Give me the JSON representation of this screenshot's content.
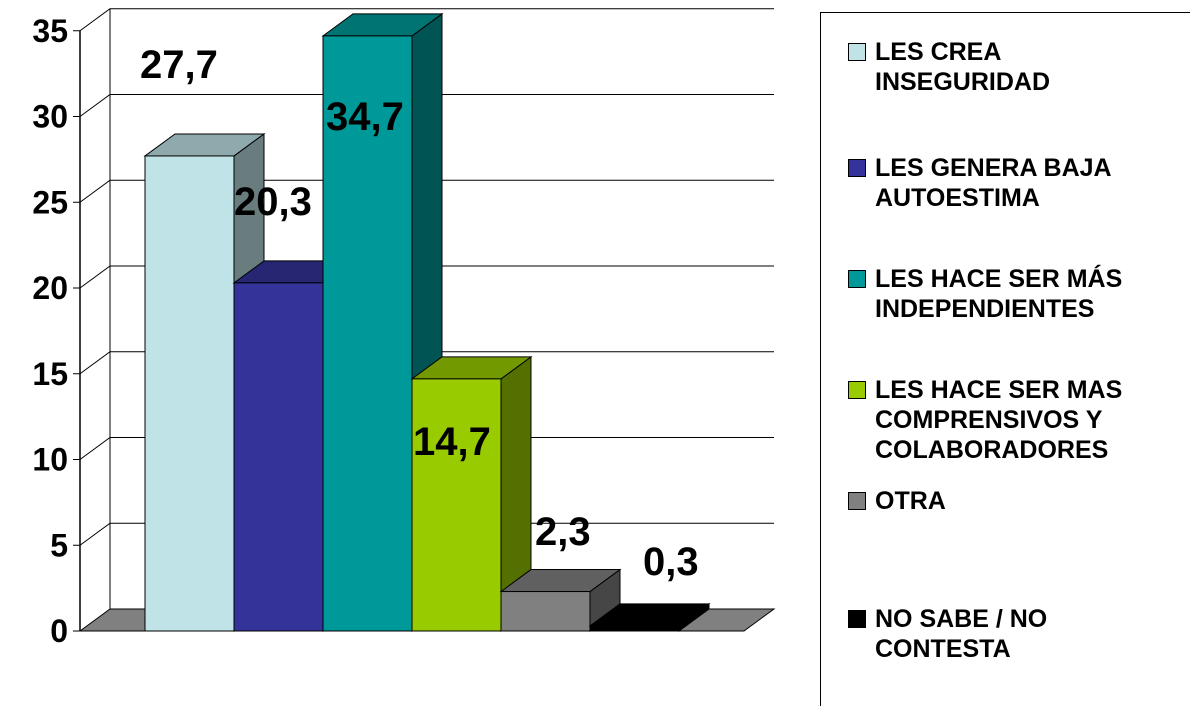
{
  "chart_data": {
    "type": "bar",
    "title": "",
    "xlabel": "",
    "ylabel": "",
    "ylim": [
      0,
      35
    ],
    "yticks": [
      0,
      5,
      10,
      15,
      20,
      25,
      30,
      35
    ],
    "grid": true,
    "legend_position": "right",
    "series": [
      {
        "name": "LES CREA INSEGURIDAD",
        "value": 27.7,
        "label": "27,7",
        "color": "#bfe3e6"
      },
      {
        "name": "LES GENERA BAJA AUTOESTIMA",
        "value": 20.3,
        "label": "20,3",
        "color": "#333399"
      },
      {
        "name": "LES HACE SER MÁS INDEPENDIENTES",
        "value": 34.7,
        "label": "34,7",
        "color": "#009999"
      },
      {
        "name": "LES HACE SER MAS COMPRENSIVOS Y COLABORADORES",
        "value": 14.7,
        "label": "14,7",
        "color": "#99cc00"
      },
      {
        "name": "OTRA",
        "value": 2.3,
        "label": "2,3",
        "color": "#808080"
      },
      {
        "name": "NO SABE / NO CONTESTA",
        "value": 0.3,
        "label": "0,3",
        "color": "#000000"
      }
    ]
  },
  "legend": {
    "items": [
      {
        "label": "LES CREA\nINSEGURIDAD",
        "color": "#bfe3e6"
      },
      {
        "label": "LES GENERA BAJA\nAUTOESTIMA",
        "color": "#333399"
      },
      {
        "label": "LES HACE SER MÁS\nINDEPENDIENTES",
        "color": "#009999"
      },
      {
        "label": "LES HACE SER MAS\nCOMPRENSIVOS Y\nCOLABORADORES",
        "color": "#99cc00"
      },
      {
        "label": "OTRA",
        "color": "#808080"
      },
      {
        "label": "NO SABE / NO\nCONTESTA",
        "color": "#000000"
      }
    ]
  }
}
